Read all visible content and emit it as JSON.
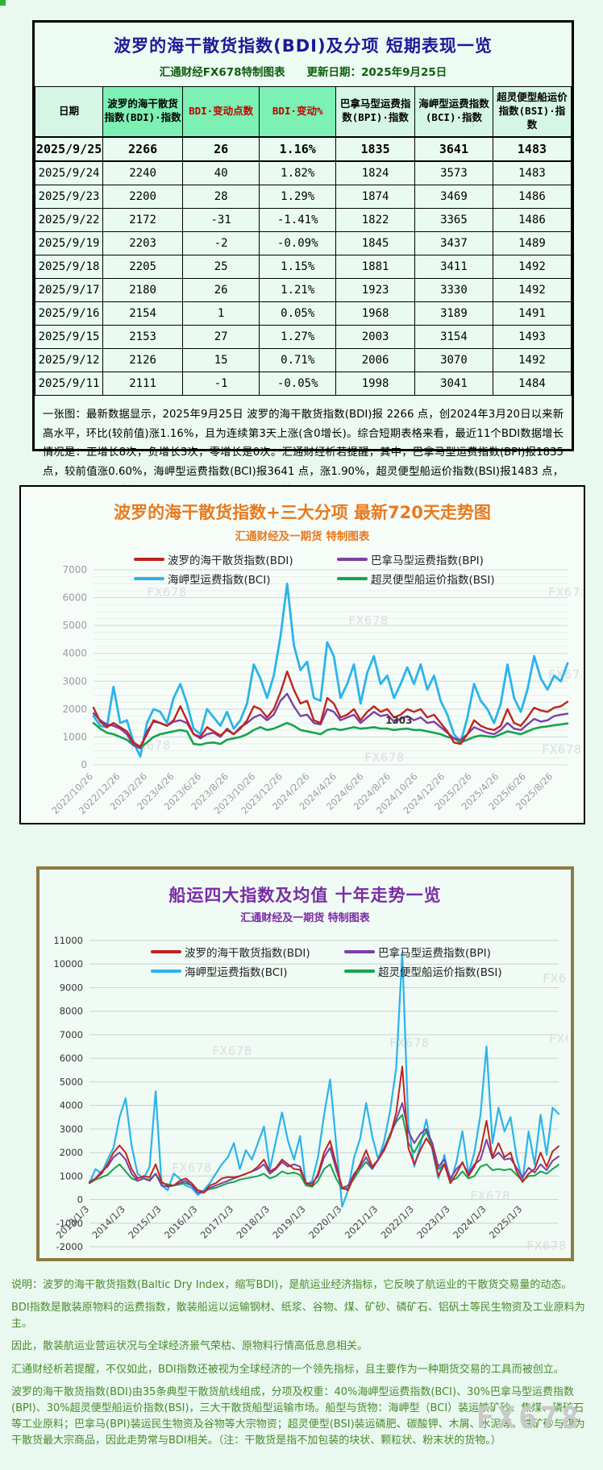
{
  "watermark": "FX678",
  "table_panel": {
    "title": "波罗的海干散货指数(BDI)及分项 短期表现一览",
    "subtitle": "汇通财经FX678特制图表　　更新日期：2025年9月25日",
    "columns": [
      "日期",
      "波罗的海干散货指数(BDI)·指数",
      "BDI·变动点数",
      "BDI·变动%",
      "巴拿马型运费指数(BPI)·指数",
      "海岬型运费指数(BCI)·指数",
      "超灵便型船运价指数(BSI)·指数"
    ],
    "rows": [
      [
        "2025/9/25",
        "2266",
        "26",
        "1.16%",
        "1835",
        "3641",
        "1483"
      ],
      [
        "2025/9/24",
        "2240",
        "40",
        "1.82%",
        "1824",
        "3573",
        "1483"
      ],
      [
        "2025/9/23",
        "2200",
        "28",
        "1.29%",
        "1874",
        "3469",
        "1486"
      ],
      [
        "2025/9/22",
        "2172",
        "-31",
        "-1.41%",
        "1822",
        "3365",
        "1486"
      ],
      [
        "2025/9/19",
        "2203",
        "-2",
        "-0.09%",
        "1845",
        "3437",
        "1489"
      ],
      [
        "2025/9/18",
        "2205",
        "25",
        "1.15%",
        "1881",
        "3411",
        "1492"
      ],
      [
        "2025/9/17",
        "2180",
        "26",
        "1.21%",
        "1923",
        "3330",
        "1492"
      ],
      [
        "2025/9/16",
        "2154",
        "1",
        "0.05%",
        "1968",
        "3189",
        "1491"
      ],
      [
        "2025/9/15",
        "2153",
        "27",
        "1.27%",
        "2003",
        "3154",
        "1493"
      ],
      [
        "2025/9/12",
        "2126",
        "15",
        "0.71%",
        "2006",
        "3070",
        "1492"
      ],
      [
        "2025/9/11",
        "2111",
        "-1",
        "-0.05%",
        "1998",
        "3041",
        "1484"
      ]
    ],
    "summary": "一张图：最新数据显示，2025年9月25日 波罗的海干散货指数(BDI)报 2266 点，创2024年3月20日以来新高水平，环比(较前值)涨1.16%，且为连续第3天上涨(含0增长)。综合短期表格来看，最近11个BDI数据增长情况是：正增长8次，负增长3次，零增长是0次。汇通财经析若提醒，其中，巴拿马型运费指数(BPI)报1835 点，较前值涨0.60%，海岬型运费指数(BCI)报3641 点，涨1.90%，超灵便型船运价指数(BSI)报1483 点，持平。综合短期表格来看，最近11个BDI数据增长情况是：正增长8次，负增长3次，零增长是0次。短期见上表格，更多详见汇通财经特制图表720天及十年走势图。"
  },
  "footnote": {
    "lines": [
      "说明：波罗的海干散货指数(Baltic Dry Index，缩写BDI)，是航运业经济指标，它反映了航运业的干散货交易量的动态。",
      "BDI指数是散装原物料的运费指数，散装船运以运输钢材、纸浆、谷物、煤、矿砂、磷矿石、铝矾土等民生物资及工业原料为主。",
      "因此，散装航运业营运状况与全球经济景气荣枯、原物料行情高低息息相关。",
      "汇通财经析若提醒，不仅如此，BDI指数还被视为全球经济的一个领先指标，且主要作为一种期货交易的工具而被创立。",
      "波罗的海干散货指数(BDI)由35条典型干散货航线组成，分项及权重：40%海岬型运费指数(BCI)、30%巴拿马型运费指数(BPI)、30%超灵便型船运价指数(BSI)，三大干散货船型运输市场。船型与货物：海岬型（BCI）装运铁矿砂、焦煤、磷矿石等工业原料；巴拿马(BPI)装运民生物资及谷物等大宗物资；超灵便型(BSI)装运磷肥、碳酸钾、木屑、水泥等。铁矿砂与煤为干散货最大宗商品，因此走势常与BDI相关。（注：干散货是指不加包装的块状、颗粒状、粉末状的货物。）"
    ]
  },
  "chart_data": [
    {
      "type": "line",
      "title": "波罗的海干散货指数+三大分项  最新720天走势图",
      "subtitle": "汇通财经及一期货  特制图表",
      "ylim": [
        0,
        7000
      ],
      "y_tick_step": 1000,
      "grid": true,
      "legend_position": "top-inside",
      "x_tick_labels": [
        "2022/10/26",
        "2022/12/26",
        "2023/2/26",
        "2023/4/26",
        "2023/6/26",
        "2023/8/26",
        "2023/10/26",
        "2023/12/26",
        "2024/2/26",
        "2024/4/26",
        "2024/6/26",
        "2024/8/26",
        "2024/10/26",
        "2024/12/26",
        "2025/2/26",
        "2025/4/26",
        "2025/6/26",
        "2025/8/26"
      ],
      "annotation": {
        "text": "1303",
        "series": "bsi",
        "index": 43
      },
      "series": [
        {
          "id": "bdi",
          "name": "波罗的海干散货指数(BDI)",
          "color": "#c2231f",
          "values": [
            2050,
            1550,
            1350,
            1500,
            1350,
            1200,
            800,
            650,
            1100,
            1600,
            1500,
            1400,
            1600,
            2100,
            1600,
            1100,
            1000,
            1350,
            1200,
            1050,
            1250,
            1100,
            1300,
            1600,
            2100,
            2000,
            1700,
            2000,
            2600,
            3350,
            2700,
            2200,
            2300,
            1600,
            1500,
            2400,
            2200,
            1700,
            1800,
            2000,
            1600,
            1900,
            2100,
            1900,
            2000,
            1700,
            1800,
            2000,
            1900,
            2000,
            1700,
            1800,
            1500,
            1200,
            800,
            750,
            1100,
            1600,
            1400,
            1300,
            1250,
            1400,
            2000,
            1500,
            1400,
            1700,
            2050,
            1950,
            1900,
            2050,
            2100,
            2266
          ]
        },
        {
          "id": "bpi",
          "name": "巴拿马型运费指数(BPI)",
          "color": "#7b3fa6",
          "values": [
            1850,
            1600,
            1450,
            1400,
            1300,
            1100,
            700,
            600,
            1200,
            1550,
            1500,
            1400,
            1550,
            1600,
            1500,
            1100,
            950,
            1100,
            1150,
            1000,
            1300,
            1100,
            1350,
            1500,
            1700,
            1800,
            1600,
            1800,
            2300,
            2550,
            2100,
            1750,
            1800,
            1500,
            1450,
            2000,
            1900,
            1600,
            1700,
            1800,
            1500,
            1700,
            1900,
            1750,
            1800,
            1550,
            1650,
            1750,
            1600,
            1700,
            1500,
            1550,
            1350,
            1150,
            950,
            900,
            1100,
            1350,
            1250,
            1150,
            1100,
            1250,
            1500,
            1300,
            1250,
            1450,
            1650,
            1550,
            1600,
            1750,
            1800,
            1835
          ]
        },
        {
          "id": "bci",
          "name": "海岬型运费指数(BCI)",
          "color": "#2bb3ec",
          "values": [
            1750,
            1400,
            1350,
            2800,
            1500,
            1600,
            800,
            300,
            1500,
            2000,
            1900,
            1500,
            2400,
            2900,
            2200,
            1300,
            1100,
            2000,
            1700,
            1400,
            1900,
            1300,
            1600,
            2200,
            3600,
            3100,
            2400,
            3200,
            4600,
            6500,
            4300,
            3400,
            3700,
            2400,
            2300,
            4400,
            3900,
            2400,
            2900,
            3600,
            2200,
            3300,
            3900,
            2900,
            3200,
            2400,
            2900,
            3500,
            2900,
            3600,
            2700,
            3200,
            2300,
            1800,
            1100,
            800,
            1700,
            2900,
            2300,
            2000,
            1500,
            2200,
            3600,
            2400,
            1900,
            2700,
            3900,
            3100,
            2700,
            3200,
            3000,
            3641
          ]
        },
        {
          "id": "bsi",
          "name": "超灵便型船运价指数(BSI)",
          "color": "#17a34d",
          "values": [
            1500,
            1300,
            1150,
            1100,
            1000,
            900,
            700,
            600,
            800,
            1000,
            1100,
            1150,
            1200,
            1250,
            1200,
            750,
            720,
            780,
            800,
            750,
            900,
            950,
            1000,
            1100,
            1250,
            1350,
            1250,
            1300,
            1400,
            1500,
            1400,
            1250,
            1200,
            1150,
            1100,
            1250,
            1300,
            1250,
            1300,
            1350,
            1300,
            1320,
            1350,
            1303,
            1300,
            1250,
            1280,
            1300,
            1250,
            1250,
            1200,
            1150,
            1100,
            1000,
            950,
            800,
            900,
            1000,
            1050,
            1020,
            1000,
            1100,
            1200,
            1150,
            1100,
            1200,
            1300,
            1350,
            1380,
            1420,
            1450,
            1483
          ]
        }
      ]
    },
    {
      "type": "line",
      "title": "船运四大指数及均值 十年走势一览",
      "subtitle": "汇通财经及一期货 特制图表",
      "ylim": [
        -2000,
        11000
      ],
      "y_tick_step": 1000,
      "grid": true,
      "legend_position": "top-inside",
      "x_tick_labels": [
        "2013/1/3",
        "2014/1/3",
        "2015/1/3",
        "2016/1/3",
        "2017/1/3",
        "2018/1/3",
        "2019/1/3",
        "2020/1/3",
        "2021/1/3",
        "2022/1/3",
        "2023/1/3",
        "2024/1/3",
        "2025/1/3"
      ],
      "series": [
        {
          "id": "bdi",
          "name": "波罗的海干散货指数(BDI)",
          "color": "#c2231f",
          "values": [
            750,
            900,
            1100,
            1500,
            2000,
            2300,
            2000,
            1300,
            900,
            1000,
            950,
            1500,
            750,
            600,
            600,
            800,
            900,
            700,
            400,
            300,
            600,
            700,
            900,
            960,
            950,
            1000,
            1100,
            1200,
            1400,
            1700,
            1200,
            1350,
            1700,
            1500,
            1300,
            1270,
            700,
            600,
            1100,
            2000,
            2500,
            1500,
            500,
            400,
            1000,
            1500,
            2100,
            1400,
            1700,
            2100,
            2700,
            3700,
            5650,
            2200,
            1500,
            2100,
            2600,
            2200,
            1000,
            1500,
            700,
            1100,
            1600,
            1000,
            1400,
            2100,
            3350,
            1800,
            2400,
            1800,
            2000,
            1200,
            750,
            1100,
            1300,
            2000,
            1400,
            2050,
            2266
          ]
        },
        {
          "id": "bpi",
          "name": "巴拿马型运费指数(BPI)",
          "color": "#7b3fa6",
          "values": [
            700,
            900,
            1200,
            1400,
            1800,
            2000,
            1700,
            1100,
            800,
            900,
            800,
            1100,
            600,
            550,
            600,
            700,
            800,
            600,
            300,
            300,
            500,
            600,
            700,
            800,
            900,
            1000,
            1100,
            1200,
            1300,
            1500,
            1100,
            1300,
            1600,
            1400,
            1500,
            1400,
            700,
            700,
            1000,
            1800,
            2200,
            1300,
            500,
            600,
            1100,
            1400,
            1800,
            1300,
            1700,
            2200,
            2700,
            3400,
            4100,
            2900,
            2400,
            2800,
            3000,
            2400,
            1400,
            1700,
            900,
            1300,
            1550,
            1100,
            1500,
            1700,
            2550,
            1750,
            2000,
            1700,
            1750,
            1350,
            950,
            1350,
            1150,
            1500,
            1250,
            1650,
            1835
          ]
        },
        {
          "id": "bci",
          "name": "海岬型运费指数(BCI)",
          "color": "#2bb3ec",
          "values": [
            700,
            1300,
            1100,
            1700,
            2200,
            3500,
            4300,
            2300,
            1100,
            900,
            1400,
            4600,
            600,
            400,
            1100,
            900,
            600,
            500,
            200,
            400,
            700,
            1100,
            1500,
            1800,
            2400,
            1300,
            2100,
            1700,
            2400,
            3100,
            1300,
            2500,
            3700,
            2500,
            1700,
            2700,
            600,
            800,
            1800,
            3600,
            5100,
            2400,
            -300,
            400,
            1800,
            2600,
            4100,
            2700,
            1700,
            2500,
            3800,
            5600,
            10485,
            3200,
            1400,
            2300,
            3400,
            2100,
            900,
            1900,
            700,
            1600,
            2900,
            1100,
            2000,
            3600,
            6500,
            2400,
            3900,
            2900,
            3500,
            1800,
            800,
            2900,
            1500,
            3600,
            1900,
            3900,
            3641
          ]
        },
        {
          "id": "bsi",
          "name": "超灵便型船运价指数(BSI)",
          "color": "#17a34d",
          "values": [
            700,
            850,
            950,
            1050,
            1300,
            1500,
            1200,
            900,
            800,
            900,
            850,
            1100,
            700,
            650,
            600,
            650,
            700,
            600,
            400,
            350,
            450,
            500,
            600,
            700,
            750,
            850,
            900,
            950,
            1000,
            1100,
            900,
            1000,
            1200,
            1100,
            1150,
            1050,
            600,
            550,
            800,
            1300,
            1500,
            900,
            450,
            500,
            900,
            1300,
            1600,
            1300,
            1700,
            2200,
            2800,
            3300,
            3600,
            2400,
            2000,
            2500,
            2900,
            2200,
            1300,
            1500,
            800,
            900,
            1200,
            900,
            1000,
            1400,
            1500,
            1250,
            1300,
            1250,
            1300,
            1050,
            800,
            1000,
            1020,
            1200,
            1100,
            1300,
            1483
          ]
        }
      ]
    }
  ]
}
